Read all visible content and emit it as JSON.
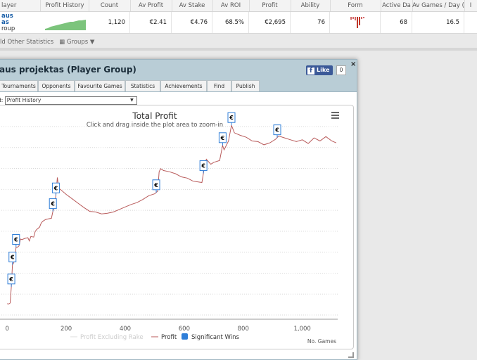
{
  "table": {
    "headers": [
      "layer",
      "Profit History",
      "Count",
      "Av Profit",
      "Av Stake",
      "Av ROI",
      "Profit",
      "Ability",
      "Form",
      "Active Da",
      "Av Games / Day (",
      "I"
    ],
    "row": {
      "player_line1": "aus",
      "player_line2": "as",
      "player_line3": "roup",
      "count": "1,120",
      "av_profit": "€2.41",
      "av_stake": "€4.76",
      "av_roi": "68.5%",
      "profit": "€2,695",
      "ability": "76",
      "active_days": "68",
      "av_games_day": "16.5"
    }
  },
  "toolbar": {
    "other_stats": "ld Other Statistics",
    "groups": "Groups ▼"
  },
  "modal": {
    "title": "aus projektas (Player Group)",
    "like_label": "Like",
    "like_count": "0",
    "close_label": "×",
    "tabs": [
      "Tournaments",
      "Opponents",
      "Favourite Games",
      "Statistics",
      "Achievements",
      "Find",
      "Publish"
    ],
    "select_label": "d:",
    "select_value": "Profit History"
  },
  "colors": {
    "profit_line": "#b85a5a",
    "profit_excl_rake": "#dddddd",
    "significant_win": "#2f7ed8",
    "sparkline": "#7cc47c"
  },
  "chart_data": {
    "type": "line",
    "title": "Total Profit",
    "subtitle": "Click and drag inside the plot area to zoom-in",
    "xlabel": "No. Games",
    "x_ticks": [
      0,
      200,
      400,
      600,
      800,
      1000
    ],
    "x_tick_labels": [
      "0",
      "200",
      "400",
      "600",
      "800",
      "1,000"
    ],
    "xlim": [
      -10,
      1120
    ],
    "ylim": [
      -200,
      2800
    ],
    "menu_icon": "hamburger-menu-icon",
    "legend": [
      "Profit Excluding Rake",
      "Profit",
      "Significant Wins"
    ],
    "series": [
      {
        "name": "Profit",
        "points": [
          [
            0,
            -20
          ],
          [
            5,
            -25
          ],
          [
            10,
            -10
          ],
          [
            14,
            250
          ],
          [
            18,
            600
          ],
          [
            22,
            630
          ],
          [
            26,
            670
          ],
          [
            30,
            880
          ],
          [
            35,
            880
          ],
          [
            40,
            900
          ],
          [
            45,
            1010
          ],
          [
            50,
            1000
          ],
          [
            60,
            1020
          ],
          [
            70,
            1030
          ],
          [
            75,
            980
          ],
          [
            80,
            1050
          ],
          [
            90,
            1040
          ],
          [
            95,
            1130
          ],
          [
            100,
            1160
          ],
          [
            110,
            1200
          ],
          [
            115,
            1260
          ],
          [
            120,
            1290
          ],
          [
            130,
            1320
          ],
          [
            140,
            1330
          ],
          [
            150,
            1340
          ],
          [
            155,
            1450
          ],
          [
            160,
            1520
          ],
          [
            165,
            1700
          ],
          [
            170,
            1990
          ],
          [
            175,
            1810
          ],
          [
            180,
            1800
          ],
          [
            200,
            1720
          ],
          [
            220,
            1650
          ],
          [
            240,
            1580
          ],
          [
            260,
            1510
          ],
          [
            280,
            1450
          ],
          [
            300,
            1440
          ],
          [
            320,
            1410
          ],
          [
            340,
            1420
          ],
          [
            360,
            1440
          ],
          [
            380,
            1480
          ],
          [
            400,
            1520
          ],
          [
            420,
            1560
          ],
          [
            440,
            1590
          ],
          [
            460,
            1640
          ],
          [
            480,
            1700
          ],
          [
            500,
            1730
          ],
          [
            510,
            1770
          ],
          [
            515,
            2080
          ],
          [
            520,
            2130
          ],
          [
            530,
            2100
          ],
          [
            550,
            2080
          ],
          [
            570,
            2050
          ],
          [
            590,
            2000
          ],
          [
            610,
            1980
          ],
          [
            630,
            1930
          ],
          [
            660,
            1910
          ],
          [
            670,
            2200
          ],
          [
            675,
            2280
          ],
          [
            690,
            2200
          ],
          [
            700,
            2230
          ],
          [
            720,
            2260
          ],
          [
            730,
            2500
          ],
          [
            735,
            2430
          ],
          [
            750,
            2570
          ],
          [
            760,
            2820
          ],
          [
            770,
            2700
          ],
          [
            790,
            2660
          ],
          [
            810,
            2630
          ],
          [
            830,
            2570
          ],
          [
            850,
            2560
          ],
          [
            870,
            2510
          ],
          [
            890,
            2540
          ],
          [
            910,
            2600
          ],
          [
            920,
            2650
          ],
          [
            940,
            2620
          ],
          [
            960,
            2590
          ],
          [
            980,
            2560
          ],
          [
            1000,
            2590
          ],
          [
            1020,
            2530
          ],
          [
            1040,
            2620
          ],
          [
            1060,
            2570
          ],
          [
            1080,
            2640
          ],
          [
            1100,
            2570
          ],
          [
            1115,
            2540
          ]
        ]
      }
    ],
    "significant_wins_x": [
      14,
      18,
      30,
      155,
      165,
      505,
      665,
      730,
      760,
      915
    ]
  }
}
